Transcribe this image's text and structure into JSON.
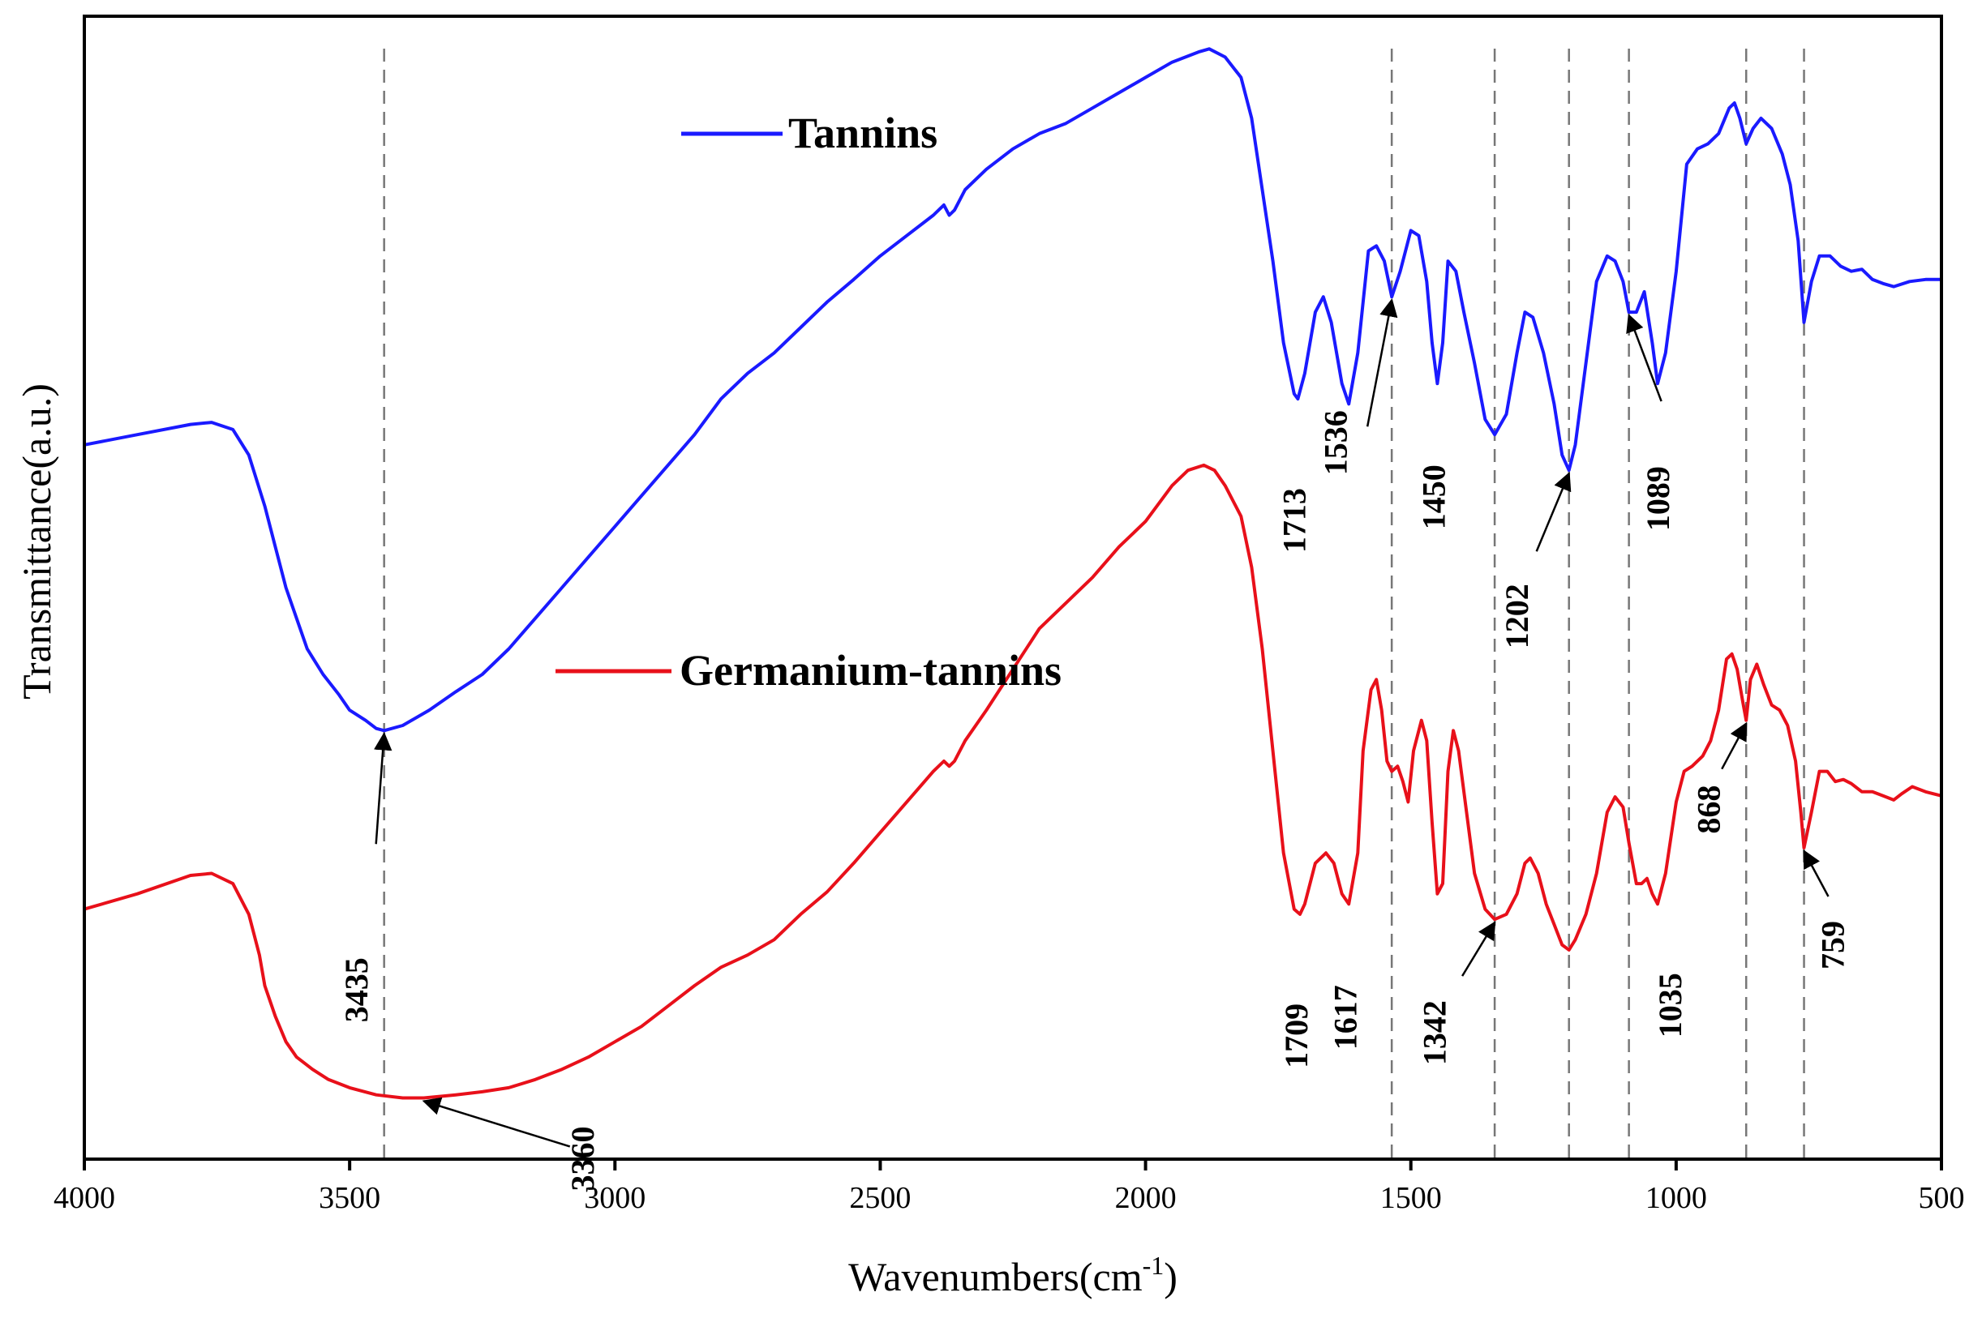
{
  "chart_data": {
    "type": "line",
    "title": "",
    "xlabel": "Wavenumbers(cm",
    "xlabel_sup": "-1",
    "xlabel_close": ")",
    "ylabel": "Transmittance(a.u.)",
    "xlim": [
      4000,
      500
    ],
    "x_ticks": [
      4000,
      3500,
      3000,
      2500,
      2000,
      1500,
      1000,
      500
    ],
    "y_ticks_labeled": false,
    "grid": false,
    "reference_lines": [
      3435,
      1536,
      1342,
      1202,
      1089,
      868,
      759
    ],
    "series": [
      {
        "name": "Tannins",
        "color": "#1a1aff",
        "legend_position": "upper-middle",
        "points": [
          [
            4000,
            0.7
          ],
          [
            3900,
            0.71
          ],
          [
            3800,
            0.72
          ],
          [
            3760,
            0.722
          ],
          [
            3720,
            0.715
          ],
          [
            3690,
            0.69
          ],
          [
            3660,
            0.64
          ],
          [
            3640,
            0.6
          ],
          [
            3620,
            0.56
          ],
          [
            3600,
            0.53
          ],
          [
            3580,
            0.5
          ],
          [
            3550,
            0.475
          ],
          [
            3520,
            0.455
          ],
          [
            3500,
            0.44
          ],
          [
            3470,
            0.43
          ],
          [
            3450,
            0.422
          ],
          [
            3435,
            0.42
          ],
          [
            3400,
            0.425
          ],
          [
            3350,
            0.44
          ],
          [
            3300,
            0.458
          ],
          [
            3250,
            0.475
          ],
          [
            3200,
            0.5
          ],
          [
            3150,
            0.53
          ],
          [
            3100,
            0.56
          ],
          [
            3050,
            0.59
          ],
          [
            3000,
            0.62
          ],
          [
            2950,
            0.65
          ],
          [
            2900,
            0.68
          ],
          [
            2850,
            0.71
          ],
          [
            2800,
            0.745
          ],
          [
            2750,
            0.77
          ],
          [
            2700,
            0.79
          ],
          [
            2650,
            0.815
          ],
          [
            2600,
            0.84
          ],
          [
            2550,
            0.862
          ],
          [
            2500,
            0.885
          ],
          [
            2450,
            0.905
          ],
          [
            2400,
            0.925
          ],
          [
            2380,
            0.935
          ],
          [
            2370,
            0.925
          ],
          [
            2360,
            0.93
          ],
          [
            2340,
            0.95
          ],
          [
            2300,
            0.97
          ],
          [
            2250,
            0.99
          ],
          [
            2200,
            1.005
          ],
          [
            2150,
            1.015
          ],
          [
            2100,
            1.03
          ],
          [
            2050,
            1.045
          ],
          [
            2000,
            1.06
          ],
          [
            1950,
            1.075
          ],
          [
            1900,
            1.085
          ],
          [
            1880,
            1.088
          ],
          [
            1850,
            1.08
          ],
          [
            1820,
            1.06
          ],
          [
            1800,
            1.02
          ],
          [
            1780,
            0.95
          ],
          [
            1760,
            0.88
          ],
          [
            1740,
            0.8
          ],
          [
            1720,
            0.75
          ],
          [
            1713,
            0.745
          ],
          [
            1700,
            0.77
          ],
          [
            1680,
            0.83
          ],
          [
            1665,
            0.845
          ],
          [
            1650,
            0.82
          ],
          [
            1630,
            0.76
          ],
          [
            1617,
            0.74
          ],
          [
            1600,
            0.79
          ],
          [
            1580,
            0.89
          ],
          [
            1565,
            0.895
          ],
          [
            1550,
            0.88
          ],
          [
            1536,
            0.845
          ],
          [
            1520,
            0.87
          ],
          [
            1500,
            0.91
          ],
          [
            1485,
            0.905
          ],
          [
            1470,
            0.86
          ],
          [
            1460,
            0.8
          ],
          [
            1450,
            0.76
          ],
          [
            1440,
            0.8
          ],
          [
            1430,
            0.88
          ],
          [
            1415,
            0.87
          ],
          [
            1400,
            0.83
          ],
          [
            1380,
            0.78
          ],
          [
            1360,
            0.725
          ],
          [
            1342,
            0.71
          ],
          [
            1320,
            0.73
          ],
          [
            1300,
            0.79
          ],
          [
            1285,
            0.83
          ],
          [
            1270,
            0.825
          ],
          [
            1250,
            0.79
          ],
          [
            1230,
            0.74
          ],
          [
            1215,
            0.69
          ],
          [
            1202,
            0.675
          ],
          [
            1190,
            0.7
          ],
          [
            1170,
            0.78
          ],
          [
            1150,
            0.86
          ],
          [
            1130,
            0.885
          ],
          [
            1115,
            0.88
          ],
          [
            1100,
            0.86
          ],
          [
            1089,
            0.83
          ],
          [
            1075,
            0.83
          ],
          [
            1060,
            0.85
          ],
          [
            1045,
            0.8
          ],
          [
            1035,
            0.76
          ],
          [
            1020,
            0.79
          ],
          [
            1000,
            0.87
          ],
          [
            980,
            0.975
          ],
          [
            960,
            0.99
          ],
          [
            940,
            0.995
          ],
          [
            920,
            1.005
          ],
          [
            900,
            1.03
          ],
          [
            890,
            1.035
          ],
          [
            880,
            1.02
          ],
          [
            868,
            0.995
          ],
          [
            855,
            1.01
          ],
          [
            840,
            1.02
          ],
          [
            820,
            1.01
          ],
          [
            800,
            0.985
          ],
          [
            785,
            0.955
          ],
          [
            770,
            0.9
          ],
          [
            759,
            0.82
          ],
          [
            745,
            0.86
          ],
          [
            730,
            0.885
          ],
          [
            710,
            0.885
          ],
          [
            690,
            0.875
          ],
          [
            670,
            0.87
          ],
          [
            650,
            0.872
          ],
          [
            630,
            0.862
          ],
          [
            610,
            0.858
          ],
          [
            590,
            0.855
          ],
          [
            560,
            0.86
          ],
          [
            530,
            0.862
          ],
          [
            500,
            0.862
          ]
        ]
      },
      {
        "name": "Germanium-tannins",
        "color": "#e8101a",
        "legend_position": "middle",
        "points": [
          [
            4000,
            0.245
          ],
          [
            3900,
            0.26
          ],
          [
            3800,
            0.278
          ],
          [
            3760,
            0.28
          ],
          [
            3720,
            0.27
          ],
          [
            3690,
            0.24
          ],
          [
            3670,
            0.2
          ],
          [
            3660,
            0.17
          ],
          [
            3640,
            0.14
          ],
          [
            3620,
            0.115
          ],
          [
            3600,
            0.1
          ],
          [
            3570,
            0.088
          ],
          [
            3540,
            0.078
          ],
          [
            3500,
            0.07
          ],
          [
            3450,
            0.063
          ],
          [
            3400,
            0.06
          ],
          [
            3360,
            0.06
          ],
          [
            3300,
            0.063
          ],
          [
            3250,
            0.066
          ],
          [
            3200,
            0.07
          ],
          [
            3150,
            0.078
          ],
          [
            3100,
            0.088
          ],
          [
            3050,
            0.1
          ],
          [
            3000,
            0.115
          ],
          [
            2950,
            0.13
          ],
          [
            2900,
            0.15
          ],
          [
            2850,
            0.17
          ],
          [
            2800,
            0.188
          ],
          [
            2750,
            0.2
          ],
          [
            2700,
            0.215
          ],
          [
            2650,
            0.24
          ],
          [
            2600,
            0.262
          ],
          [
            2550,
            0.29
          ],
          [
            2500,
            0.32
          ],
          [
            2450,
            0.35
          ],
          [
            2400,
            0.38
          ],
          [
            2380,
            0.39
          ],
          [
            2370,
            0.385
          ],
          [
            2360,
            0.39
          ],
          [
            2340,
            0.41
          ],
          [
            2300,
            0.44
          ],
          [
            2250,
            0.48
          ],
          [
            2200,
            0.52
          ],
          [
            2150,
            0.545
          ],
          [
            2100,
            0.57
          ],
          [
            2050,
            0.6
          ],
          [
            2000,
            0.625
          ],
          [
            1950,
            0.66
          ],
          [
            1920,
            0.675
          ],
          [
            1890,
            0.68
          ],
          [
            1870,
            0.675
          ],
          [
            1850,
            0.66
          ],
          [
            1820,
            0.63
          ],
          [
            1800,
            0.58
          ],
          [
            1780,
            0.5
          ],
          [
            1760,
            0.4
          ],
          [
            1740,
            0.3
          ],
          [
            1720,
            0.245
          ],
          [
            1709,
            0.24
          ],
          [
            1700,
            0.25
          ],
          [
            1680,
            0.29
          ],
          [
            1660,
            0.3
          ],
          [
            1645,
            0.29
          ],
          [
            1630,
            0.26
          ],
          [
            1617,
            0.25
          ],
          [
            1600,
            0.3
          ],
          [
            1590,
            0.4
          ],
          [
            1575,
            0.46
          ],
          [
            1565,
            0.47
          ],
          [
            1555,
            0.44
          ],
          [
            1545,
            0.39
          ],
          [
            1536,
            0.38
          ],
          [
            1525,
            0.385
          ],
          [
            1515,
            0.37
          ],
          [
            1505,
            0.35
          ],
          [
            1495,
            0.4
          ],
          [
            1480,
            0.43
          ],
          [
            1470,
            0.41
          ],
          [
            1460,
            0.33
          ],
          [
            1450,
            0.26
          ],
          [
            1440,
            0.27
          ],
          [
            1430,
            0.38
          ],
          [
            1420,
            0.42
          ],
          [
            1410,
            0.4
          ],
          [
            1395,
            0.34
          ],
          [
            1380,
            0.28
          ],
          [
            1360,
            0.245
          ],
          [
            1342,
            0.235
          ],
          [
            1320,
            0.24
          ],
          [
            1300,
            0.26
          ],
          [
            1285,
            0.29
          ],
          [
            1275,
            0.295
          ],
          [
            1260,
            0.28
          ],
          [
            1245,
            0.25
          ],
          [
            1230,
            0.23
          ],
          [
            1215,
            0.21
          ],
          [
            1202,
            0.205
          ],
          [
            1190,
            0.215
          ],
          [
            1170,
            0.24
          ],
          [
            1150,
            0.28
          ],
          [
            1130,
            0.34
          ],
          [
            1115,
            0.355
          ],
          [
            1100,
            0.345
          ],
          [
            1089,
            0.31
          ],
          [
            1075,
            0.27
          ],
          [
            1065,
            0.27
          ],
          [
            1055,
            0.275
          ],
          [
            1045,
            0.26
          ],
          [
            1035,
            0.25
          ],
          [
            1020,
            0.28
          ],
          [
            1000,
            0.35
          ],
          [
            985,
            0.38
          ],
          [
            970,
            0.385
          ],
          [
            950,
            0.395
          ],
          [
            935,
            0.41
          ],
          [
            920,
            0.44
          ],
          [
            905,
            0.49
          ],
          [
            895,
            0.495
          ],
          [
            885,
            0.48
          ],
          [
            875,
            0.45
          ],
          [
            868,
            0.43
          ],
          [
            860,
            0.47
          ],
          [
            848,
            0.485
          ],
          [
            835,
            0.465
          ],
          [
            820,
            0.445
          ],
          [
            805,
            0.44
          ],
          [
            790,
            0.425
          ],
          [
            775,
            0.39
          ],
          [
            765,
            0.34
          ],
          [
            759,
            0.305
          ],
          [
            745,
            0.34
          ],
          [
            730,
            0.38
          ],
          [
            715,
            0.38
          ],
          [
            700,
            0.37
          ],
          [
            685,
            0.372
          ],
          [
            670,
            0.368
          ],
          [
            650,
            0.36
          ],
          [
            630,
            0.36
          ],
          [
            610,
            0.356
          ],
          [
            590,
            0.352
          ],
          [
            575,
            0.358
          ],
          [
            555,
            0.365
          ],
          [
            530,
            0.36
          ],
          [
            500,
            0.356
          ]
        ]
      }
    ],
    "annotations": [
      {
        "series": "Tannins",
        "label": "3435",
        "x": 3435
      },
      {
        "series": "Tannins",
        "label": "1713",
        "x": 1713
      },
      {
        "series": "Tannins",
        "label": "1536",
        "x": 1536
      },
      {
        "series": "Tannins",
        "label": "1450",
        "x": 1450
      },
      {
        "series": "Tannins",
        "label": "1202",
        "x": 1202
      },
      {
        "series": "Tannins",
        "label": "1089",
        "x": 1089
      },
      {
        "series": "Germanium-tannins",
        "label": "3360",
        "x": 3360
      },
      {
        "series": "Germanium-tannins",
        "label": "1709",
        "x": 1709
      },
      {
        "series": "Germanium-tannins",
        "label": "1617",
        "x": 1617
      },
      {
        "series": "Germanium-tannins",
        "label": "1342",
        "x": 1342
      },
      {
        "series": "Germanium-tannins",
        "label": "1035",
        "x": 1035
      },
      {
        "series": "Germanium-tannins",
        "label": "868",
        "x": 868
      },
      {
        "series": "Germanium-tannins",
        "label": "759",
        "x": 759
      }
    ]
  }
}
